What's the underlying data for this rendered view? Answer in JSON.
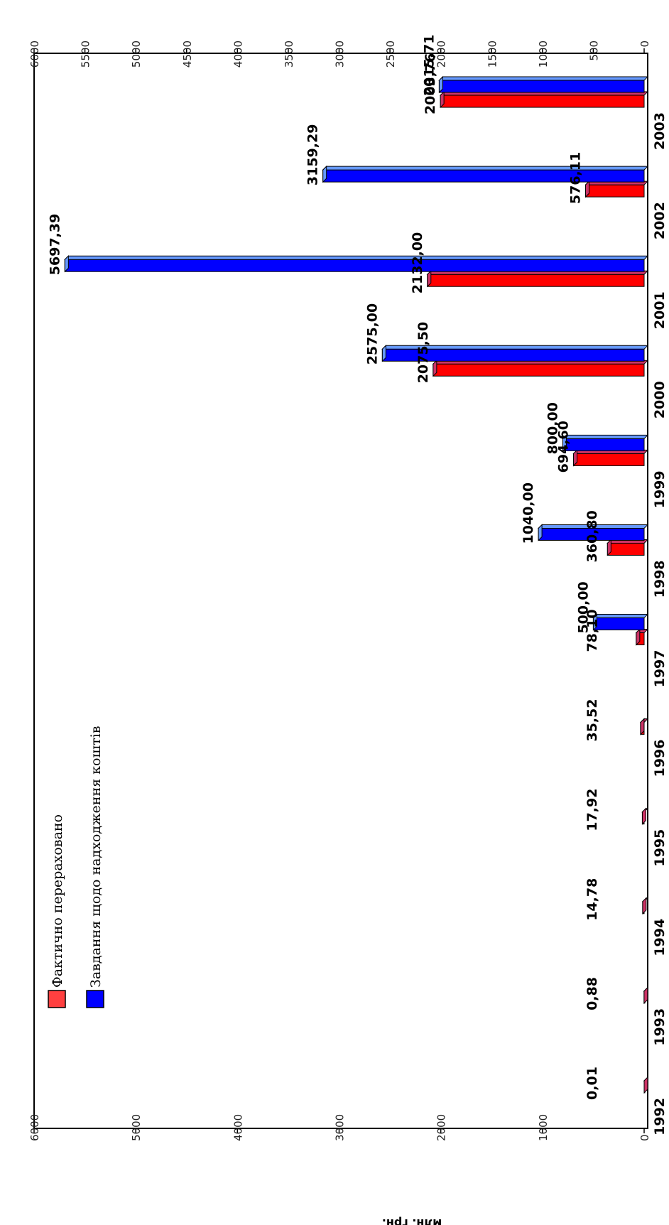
{
  "chart_data": {
    "type": "bar",
    "orientation": "horizontal",
    "ylabel": "млн. грн.",
    "categories": [
      "1992",
      "1993",
      "1994",
      "1995",
      "1996",
      "1997",
      "1998",
      "1999",
      "2000",
      "2001",
      "2002",
      "2003"
    ],
    "series": [
      {
        "name": "Фактично перераховано",
        "color": "#ff0000",
        "values": [
          0.01,
          0.88,
          14.78,
          17.92,
          35.52,
          78.1,
          360.8,
          694.6,
          2075.5,
          2132.0,
          576.11,
          2003.76
        ],
        "labels": [
          "0,01",
          "0,88",
          "14,78",
          "17,92",
          "35,52",
          "78,10",
          "360,80",
          "694,60",
          "2075,50",
          "2132,00",
          "576,11",
          "2003,76"
        ]
      },
      {
        "name": "Завдання щодо надходження коштів",
        "color": "#0000ff",
        "values": [
          null,
          null,
          null,
          null,
          null,
          500.0,
          1040.0,
          800.0,
          2575.0,
          5697.39,
          3159.29,
          2015.71
        ],
        "labels": [
          "",
          "",
          "",
          "",
          "",
          "500,00",
          "1040,00",
          "800,00",
          "2575,00",
          "5697,39",
          "3159,29",
          "2015,71"
        ]
      }
    ],
    "axis_left": {
      "range": [
        0,
        6000
      ],
      "ticks": [
        "0",
        "1000",
        "2000",
        "3000",
        "4000",
        "5000",
        "6000"
      ]
    },
    "axis_right": {
      "range": [
        0,
        6000
      ],
      "ticks": [
        "0",
        "500",
        "1000",
        "1500",
        "2000",
        "2500",
        "3000",
        "3500",
        "4000",
        "4500",
        "5000",
        "5500",
        "6000"
      ]
    },
    "legend_position": "bottom-left",
    "grid": false
  }
}
